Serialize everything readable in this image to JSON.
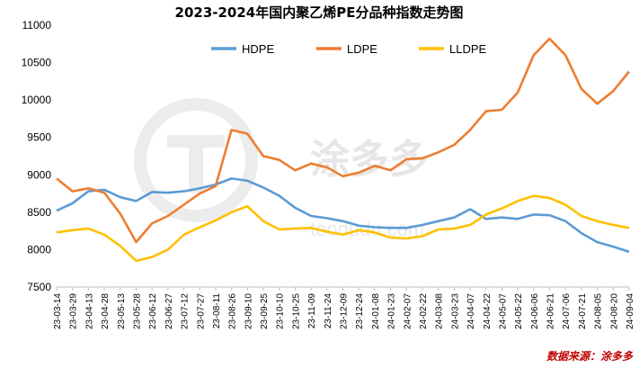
{
  "chart_data": {
    "type": "line",
    "title": "2023-2024年国内聚乙烯PE分品种指数走势图",
    "source": "数据来源：涂多多",
    "watermark": {
      "brand": "涂多多",
      "url": "toodudu.com"
    },
    "ylim": [
      7500,
      11000
    ],
    "yticks": [
      7500,
      8000,
      8500,
      9000,
      9500,
      10000,
      10500,
      11000
    ],
    "legend_position": "top",
    "x_tick_labels": [
      "23-03-14",
      "23-03-29",
      "23-04-13",
      "23-04-28",
      "23-05-13",
      "23-05-28",
      "23-06-12",
      "23-06-27",
      "23-07-12",
      "23-07-27",
      "23-08-11",
      "23-08-26",
      "23-09-10",
      "23-09-25",
      "23-10-10",
      "23-10-25",
      "23-11-09",
      "23-11-24",
      "23-12-09",
      "23-12-24",
      "24-01-08",
      "24-01-23",
      "24-02-07",
      "24-02-22",
      "24-03-08",
      "24-03-23",
      "24-04-07",
      "24-04-22",
      "24-05-07",
      "24-05-22",
      "24-06-06",
      "24-06-21",
      "24-07-06",
      "24-07-21",
      "24-08-05",
      "24-08-20",
      "24-09-04"
    ],
    "x_points": [
      "23-03-14",
      "23-03-29",
      "23-04-13",
      "23-04-28",
      "23-05-13",
      "23-05-28",
      "23-06-12",
      "23-06-27",
      "23-07-12",
      "23-07-27",
      "23-08-11",
      "23-08-26",
      "23-09-10",
      "23-09-25",
      "23-10-10",
      "23-10-25",
      "23-11-09",
      "23-11-24",
      "23-12-09",
      "23-12-24",
      "24-01-08",
      "24-01-23",
      "24-02-07",
      "24-02-22",
      "24-03-08",
      "24-03-23",
      "24-04-07",
      "24-04-22",
      "24-05-07",
      "24-05-22",
      "24-06-06",
      "24-06-21",
      "24-07-06",
      "24-07-21",
      "24-08-05",
      "24-08-20",
      "24-09-04"
    ],
    "series": [
      {
        "name": "HDPE",
        "color": "#5b9bd5",
        "values": [
          8520,
          8620,
          8780,
          8800,
          8700,
          8650,
          8770,
          8760,
          8780,
          8820,
          8870,
          8950,
          8920,
          8830,
          8720,
          8560,
          8450,
          8420,
          8380,
          8320,
          8300,
          8290,
          8290,
          8330,
          8380,
          8430,
          8540,
          8410,
          8430,
          8410,
          8470,
          8460,
          8380,
          8220,
          8100,
          8040,
          7970
        ]
      },
      {
        "name": "LDPE",
        "color": "#ed7d31",
        "values": [
          8950,
          8780,
          8820,
          8760,
          8480,
          8100,
          8350,
          8450,
          8600,
          8750,
          8850,
          9600,
          9550,
          9250,
          9200,
          9060,
          9150,
          9100,
          8980,
          9030,
          9120,
          9060,
          9210,
          9220,
          9300,
          9400,
          9600,
          9850,
          9870,
          10100,
          10600,
          10820,
          10600,
          10150,
          9950,
          10120,
          10380
        ]
      },
      {
        "name": "LLDPE",
        "color": "#ffc000",
        "values": [
          8230,
          8260,
          8280,
          8200,
          8050,
          7850,
          7900,
          8000,
          8200,
          8300,
          8390,
          8500,
          8580,
          8380,
          8270,
          8280,
          8290,
          8240,
          8200,
          8260,
          8230,
          8160,
          8150,
          8180,
          8270,
          8280,
          8330,
          8470,
          8550,
          8650,
          8720,
          8690,
          8600,
          8450,
          8380,
          8330,
          8290
        ]
      }
    ]
  }
}
